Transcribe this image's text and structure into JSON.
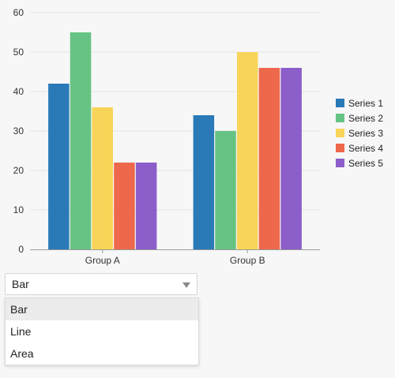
{
  "chart_data": {
    "type": "bar",
    "categories": [
      "Group A",
      "Group B"
    ],
    "series": [
      {
        "name": "Series 1",
        "values": [
          42,
          34
        ],
        "color": "#2a7ab8"
      },
      {
        "name": "Series 2",
        "values": [
          55,
          30
        ],
        "color": "#67c383"
      },
      {
        "name": "Series 3",
        "values": [
          36,
          50
        ],
        "color": "#f8d558"
      },
      {
        "name": "Series 4",
        "values": [
          22,
          46
        ],
        "color": "#ee684b"
      },
      {
        "name": "Series 5",
        "values": [
          22,
          46
        ],
        "color": "#8c5ec9"
      }
    ],
    "y_ticks": [
      "0",
      "10",
      "20",
      "30",
      "40",
      "50",
      "60"
    ],
    "ylim": [
      0,
      60
    ],
    "grid": true,
    "legend_placement": "right"
  },
  "chart_type_select": {
    "selected": "Bar",
    "options": [
      "Bar",
      "Line",
      "Area"
    ],
    "highlighted_index": 0
  }
}
